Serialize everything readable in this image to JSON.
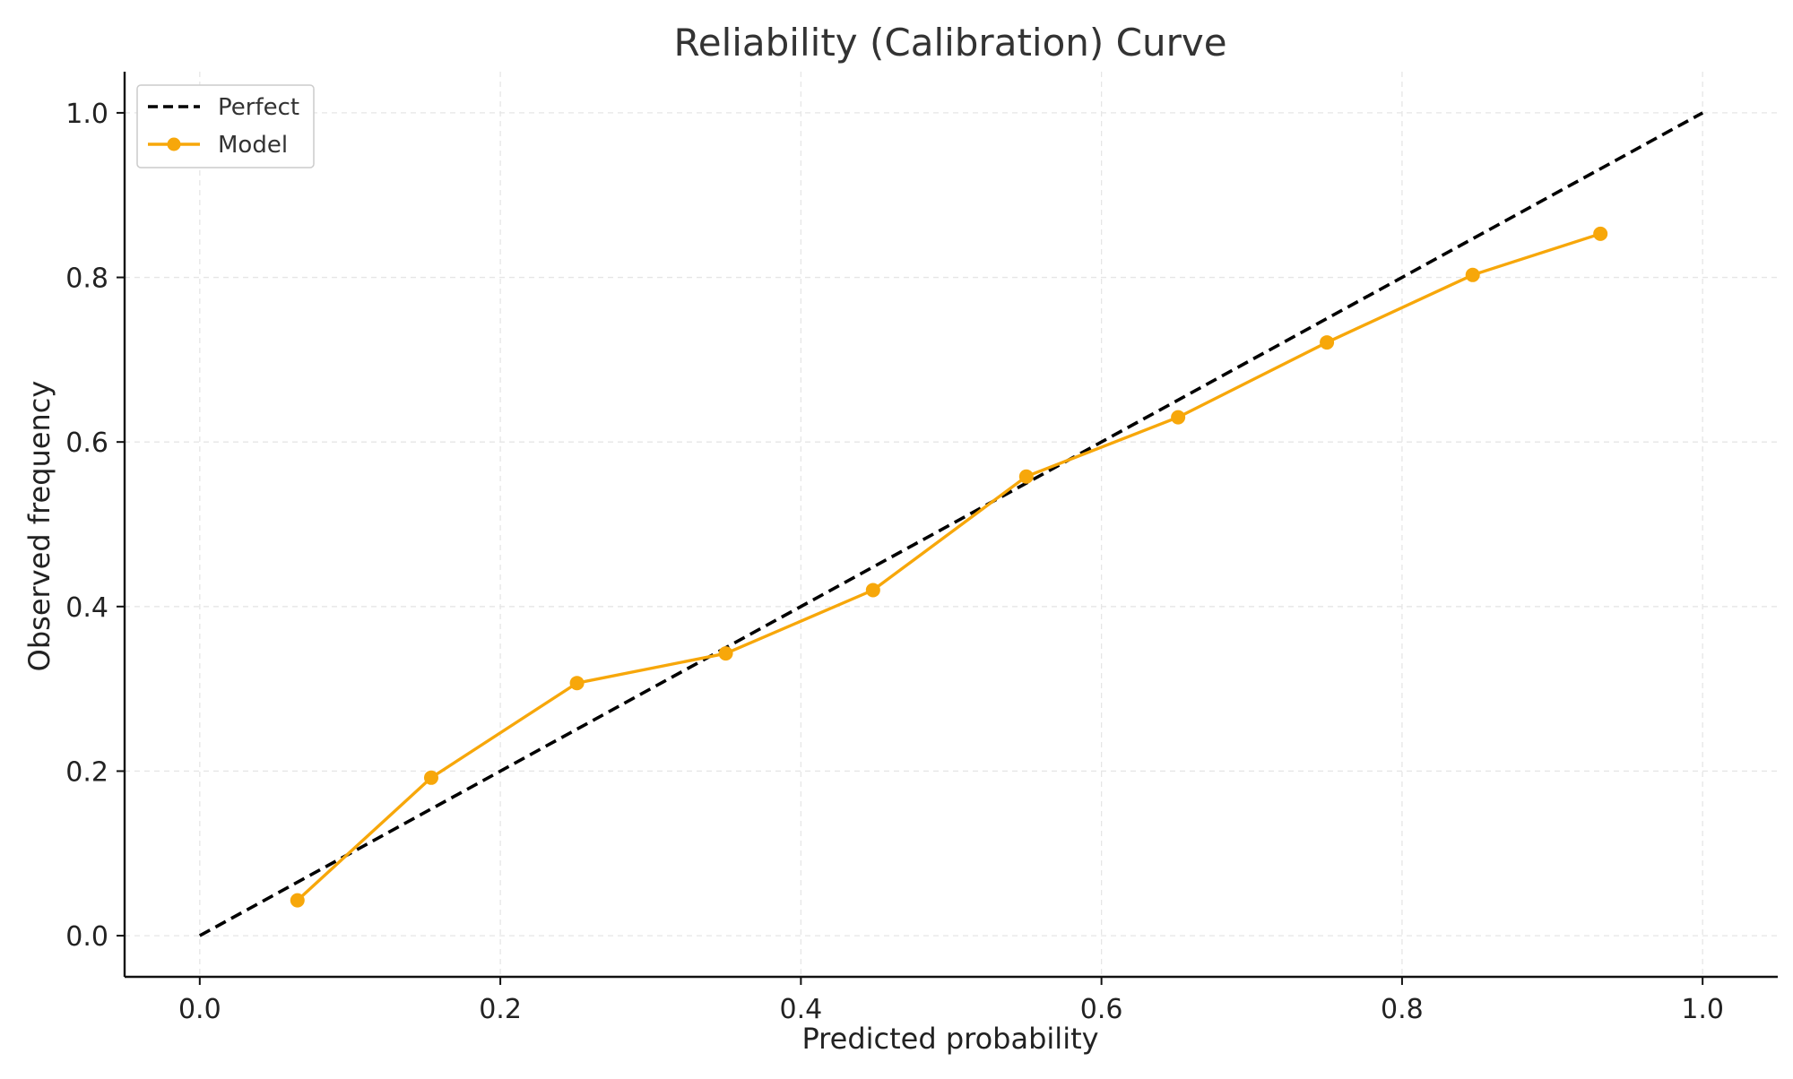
{
  "chart_data": {
    "type": "line",
    "title": "Reliability (Calibration) Curve",
    "xlabel": "Predicted probability",
    "ylabel": "Observed frequency",
    "xlim": [
      -0.05,
      1.05
    ],
    "ylim": [
      -0.05,
      1.05
    ],
    "xticks": [
      0.0,
      0.2,
      0.4,
      0.6,
      0.8,
      1.0
    ],
    "yticks": [
      0.0,
      0.2,
      0.4,
      0.6,
      0.8,
      1.0
    ],
    "xtick_labels": [
      "0.0",
      "0.2",
      "0.4",
      "0.6",
      "0.8",
      "1.0"
    ],
    "ytick_labels": [
      "0.0",
      "0.2",
      "0.4",
      "0.6",
      "0.8",
      "1.0"
    ],
    "grid": true,
    "legend_position": "top-left",
    "series": [
      {
        "name": "Perfect",
        "style": "dashed",
        "color": "#000000",
        "x": [
          0.0,
          1.0
        ],
        "y": [
          0.0,
          1.0
        ]
      },
      {
        "name": "Model",
        "style": "solid-markers",
        "color": "#F7A70A",
        "x": [
          0.065,
          0.154,
          0.251,
          0.35,
          0.448,
          0.55,
          0.651,
          0.75,
          0.847,
          0.932
        ],
        "y": [
          0.043,
          0.192,
          0.307,
          0.343,
          0.42,
          0.558,
          0.63,
          0.721,
          0.803,
          0.853
        ]
      }
    ]
  }
}
